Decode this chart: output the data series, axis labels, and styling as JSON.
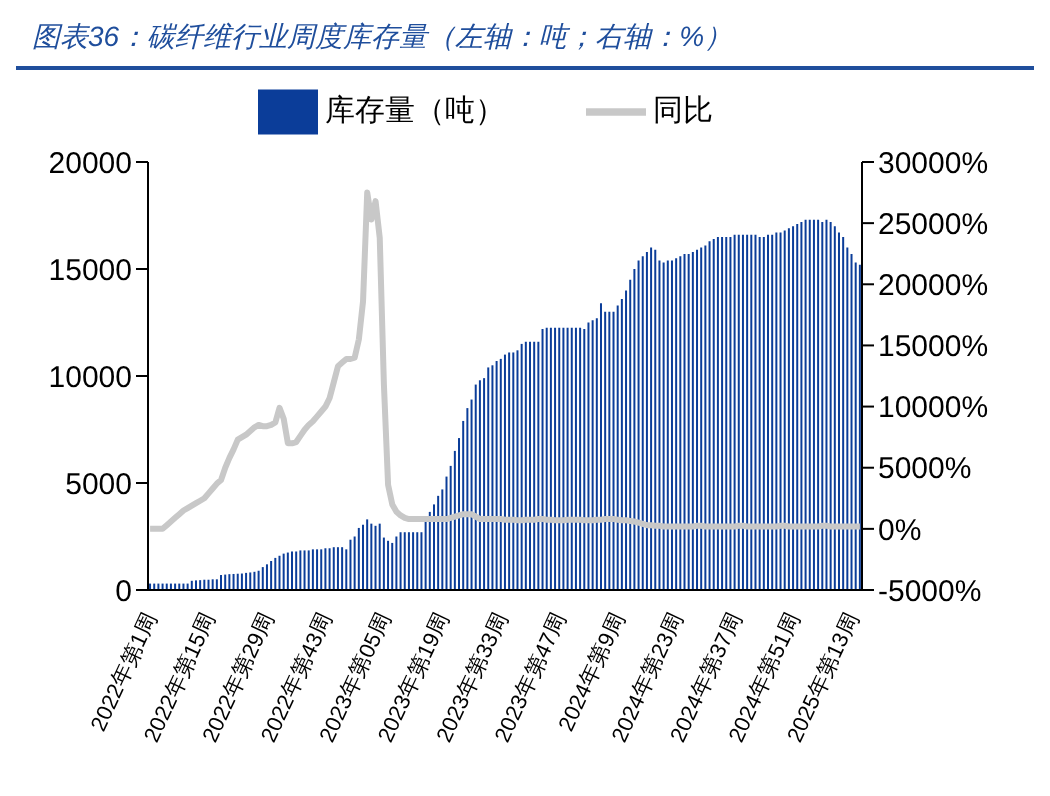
{
  "chart_data": {
    "type": "bar",
    "title": "图表36：碳纤维行业周度库存量（左轴：吨；右轴：%）",
    "legend": "top",
    "grid": false,
    "categories": [
      "2022年第1周",
      null,
      null,
      null,
      null,
      null,
      null,
      null,
      null,
      null,
      null,
      null,
      null,
      null,
      "2022年第15周",
      null,
      null,
      null,
      null,
      null,
      null,
      null,
      null,
      null,
      null,
      null,
      null,
      null,
      "2022年第29周",
      null,
      null,
      null,
      null,
      null,
      null,
      null,
      null,
      null,
      null,
      null,
      null,
      null,
      "2022年第43周",
      null,
      null,
      null,
      null,
      null,
      null,
      null,
      null,
      null,
      null,
      null,
      null,
      null,
      "2023年第05周",
      null,
      null,
      null,
      null,
      null,
      null,
      null,
      null,
      null,
      null,
      null,
      null,
      null,
      "2023年第19周",
      null,
      null,
      null,
      null,
      null,
      null,
      null,
      null,
      null,
      null,
      null,
      null,
      null,
      "2023年第33周",
      null,
      null,
      null,
      null,
      null,
      null,
      null,
      null,
      null,
      null,
      null,
      null,
      null,
      "2023年第47周",
      null,
      null,
      null,
      null,
      null,
      null,
      null,
      null,
      null,
      null,
      null,
      null,
      null,
      "2024年第9周",
      null,
      null,
      null,
      null,
      null,
      null,
      null,
      null,
      null,
      null,
      null,
      null,
      null,
      "2024年第23周",
      null,
      null,
      null,
      null,
      null,
      null,
      null,
      null,
      null,
      null,
      null,
      null,
      null,
      "2024年第37周",
      null,
      null,
      null,
      null,
      null,
      null,
      null,
      null,
      null,
      null,
      null,
      null,
      null,
      "2024年第51周",
      null,
      null,
      null,
      null,
      null,
      null,
      null,
      null,
      null,
      null,
      null,
      null,
      null,
      "2025年第13周",
      null,
      null
    ],
    "ylim": [
      0,
      20000
    ],
    "yticks": [
      0,
      5000,
      10000,
      15000,
      20000
    ],
    "y2lim": [
      -5000,
      30000
    ],
    "y2ticks": [
      {
        "value": -5000,
        "label": "-5000%"
      },
      {
        "value": 0,
        "label": "0%"
      },
      {
        "value": 5000,
        "label": "5000%"
      },
      {
        "value": 10000,
        "label": "10000%"
      },
      {
        "value": 15000,
        "label": "15000%"
      },
      {
        "value": 20000,
        "label": "20000%"
      },
      {
        "value": 25000,
        "label": "25000%"
      },
      {
        "value": 30000,
        "label": "30000%"
      }
    ],
    "series": [
      {
        "name": "库存量（吨）",
        "color": "#0b3d99",
        "values": [
          300,
          300,
          300,
          300,
          300,
          300,
          300,
          300,
          300,
          300,
          430,
          450,
          460,
          480,
          480,
          500,
          500,
          700,
          720,
          740,
          750,
          760,
          770,
          800,
          820,
          850,
          900,
          1070,
          1200,
          1350,
          1500,
          1600,
          1700,
          1750,
          1800,
          1800,
          1850,
          1850,
          1850,
          1900,
          1900,
          1900,
          1950,
          1950,
          2000,
          2000,
          2000,
          1900,
          2350,
          2500,
          2900,
          3050,
          3300,
          3100,
          3000,
          3100,
          2450,
          2300,
          2200,
          2500,
          2700,
          2700,
          2700,
          2700,
          2700,
          2700,
          3300,
          3650,
          4000,
          4400,
          4700,
          5300,
          5800,
          6500,
          7100,
          7900,
          8500,
          8900,
          9600,
          9800,
          9900,
          10400,
          10500,
          10700,
          10800,
          11000,
          11100,
          11100,
          11200,
          11500,
          11600,
          11600,
          11600,
          11600,
          12200,
          12250,
          12250,
          12250,
          12250,
          12250,
          12250,
          12250,
          12250,
          12250,
          12200,
          12500,
          12600,
          12700,
          13400,
          13000,
          13000,
          13000,
          13300,
          13600,
          14000,
          14500,
          15000,
          15400,
          15600,
          15800,
          16000,
          15900,
          15400,
          15300,
          15400,
          15400,
          15500,
          15600,
          15700,
          15700,
          15800,
          15900,
          16000,
          16100,
          16300,
          16400,
          16500,
          16500,
          16500,
          16500,
          16600,
          16600,
          16600,
          16600,
          16600,
          16600,
          16500,
          16500,
          16600,
          16600,
          16700,
          16700,
          16800,
          16900,
          17000,
          17100,
          17200,
          17300,
          17300,
          17300,
          17300,
          17200,
          17300,
          17200,
          17000,
          16700,
          16500,
          16000,
          15700,
          15300,
          15200
        ]
      },
      {
        "name": "同比",
        "type": "line",
        "axis": "y2",
        "color": "#c8c8c8",
        "values": [
          0,
          0,
          0,
          0,
          300,
          600,
          900,
          1200,
          1500,
          1700,
          1900,
          2100,
          2300,
          2500,
          2900,
          3300,
          3700,
          4000,
          5000,
          5800,
          6500,
          7300,
          7500,
          7700,
          8000,
          8300,
          8500,
          8400,
          8400,
          8500,
          8700,
          9900,
          9000,
          7000,
          7000,
          7100,
          7600,
          8100,
          8500,
          8800,
          9200,
          9600,
          10000,
          10700,
          12000,
          13300,
          13600,
          13900,
          13900,
          14000,
          15500,
          18600,
          27500,
          25300,
          26800,
          23800,
          11800,
          3600,
          2000,
          1400,
          1100,
          900,
          800,
          800,
          800,
          800,
          800,
          800,
          800,
          800,
          800,
          800,
          900,
          1000,
          1100,
          1200,
          1200,
          1200,
          1000,
          800,
          800,
          800,
          800,
          800,
          800,
          750,
          750,
          750,
          700,
          700,
          750,
          750,
          750,
          800,
          800,
          750,
          750,
          700,
          700,
          700,
          750,
          750,
          750,
          750,
          700,
          700,
          700,
          750,
          750,
          800,
          800,
          800,
          750,
          700,
          700,
          650,
          600,
          500,
          400,
          300,
          300,
          250,
          250,
          200,
          200,
          200,
          200,
          200,
          200,
          200,
          200,
          250,
          250,
          200,
          200,
          200,
          200,
          200,
          200,
          200,
          200,
          250,
          250,
          200,
          200,
          200,
          200,
          200,
          200,
          200,
          200,
          250,
          250,
          200,
          200,
          200,
          200,
          200,
          200,
          200,
          200,
          250,
          250,
          200,
          200,
          200,
          200,
          200,
          200,
          200,
          200
        ]
      }
    ]
  }
}
